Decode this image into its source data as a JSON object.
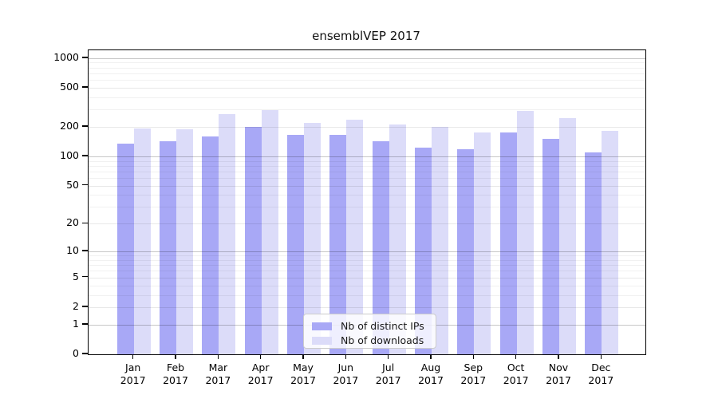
{
  "title": "ensemblVEP 2017",
  "colors": {
    "distinct_ips_bar": "#a8a8f6",
    "downloads_bar": "#dcdcf9",
    "axis": "#000000",
    "grid_strong": "rgba(0,0,0,0.22)",
    "grid_mid": "rgba(0,0,0,0.09)",
    "grid_minor": "rgba(0,0,0,0.055)",
    "legend_background": "rgba(255,255,255,0.82)",
    "legend_border": "#cccccc"
  },
  "chart_data": {
    "type": "bar",
    "title": "ensemblVEP 2017",
    "categories": [
      "Jan 2017",
      "Feb 2017",
      "Mar 2017",
      "Apr 2017",
      "May 2017",
      "Jun 2017",
      "Jul 2017",
      "Aug 2017",
      "Sep 2017",
      "Oct 2017",
      "Nov 2017",
      "Dec 2017"
    ],
    "series": [
      {
        "name": "Nb of distinct IPs",
        "color": "#a8a8f6",
        "values": [
          134,
          143,
          161,
          200,
          166,
          167,
          142,
          123,
          119,
          174,
          152,
          109
        ]
      },
      {
        "name": "Nb of downloads",
        "color": "#dcdcf9",
        "values": [
          194,
          190,
          269,
          295,
          219,
          238,
          210,
          200,
          176,
          291,
          247,
          184
        ]
      }
    ],
    "xlabel": "",
    "ylabel": "",
    "y_ticks": [
      0,
      1,
      2,
      5,
      10,
      20,
      50,
      100,
      200,
      500,
      1000
    ],
    "y_scale": "log10(value+1)",
    "ylim": [
      0,
      1200
    ],
    "grid": true,
    "grid_lines_over_bars": true,
    "legend_position": "lower center"
  }
}
